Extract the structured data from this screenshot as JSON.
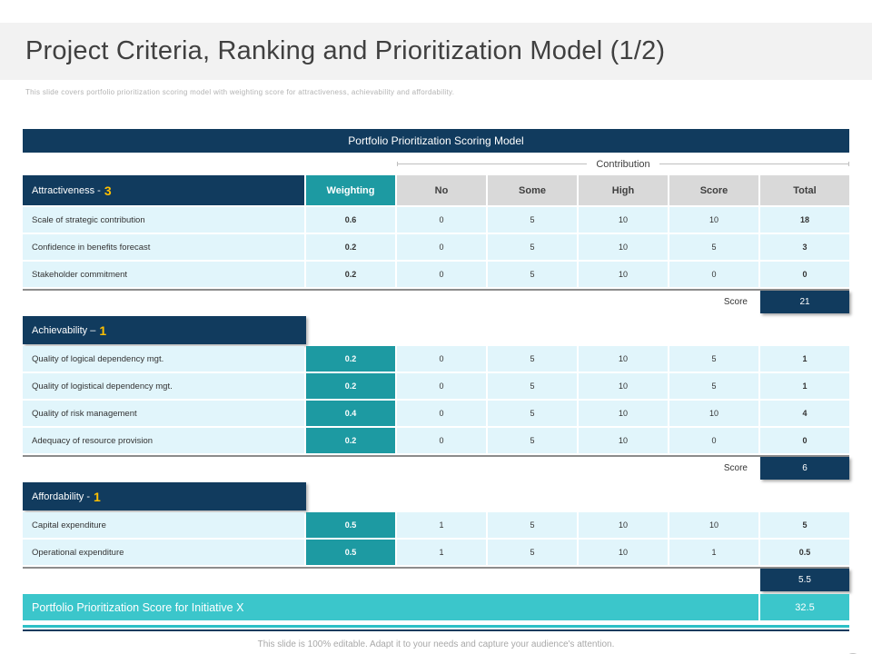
{
  "slide": {
    "title": "Project Criteria, Ranking and Prioritization Model (1/2)",
    "subtitle": "This slide covers portfolio prioritization scoring model with weighting score for attractiveness, achievability and affordability.",
    "footer": "This slide is 100% editable. Adapt it to your needs and capture your audience's attention.",
    "page_number": "8"
  },
  "colors": {
    "navy": "#113b5e",
    "teal": "#1d9aa2",
    "light_teal": "#3bc6cb",
    "row_background": "#e1f5fb",
    "header_gray": "#d9d9d9",
    "accent_yellow": "#ffc000"
  },
  "table": {
    "title": "Portfolio Prioritization Scoring Model",
    "contribution_label": "Contribution",
    "headers": {
      "weighting": "Weighting",
      "no": "No",
      "some": "Some",
      "high": "High",
      "score": "Score",
      "total": "Total"
    },
    "score_label": "Score",
    "sections": [
      {
        "name": "Attractiveness - ",
        "number": "3",
        "rows": [
          {
            "label": "Scale of strategic contribution",
            "weighting": "0.6",
            "no": "0",
            "some": "5",
            "high": "10",
            "score": "10",
            "total": "18"
          },
          {
            "label": "Confidence in benefits forecast",
            "weighting": "0.2",
            "no": "0",
            "some": "5",
            "high": "10",
            "score": "5",
            "total": "3"
          },
          {
            "label": "Stakeholder commitment",
            "weighting": "0.2",
            "no": "0",
            "some": "5",
            "high": "10",
            "score": "0",
            "total": "0"
          }
        ],
        "score": "21"
      },
      {
        "name": "Achievability – ",
        "number": "1",
        "rows": [
          {
            "label": "Quality of logical dependency mgt.",
            "weighting": "0.2",
            "no": "0",
            "some": "5",
            "high": "10",
            "score": "5",
            "total": "1"
          },
          {
            "label": "Quality of logistical dependency mgt.",
            "weighting": "0.2",
            "no": "0",
            "some": "5",
            "high": "10",
            "score": "5",
            "total": "1"
          },
          {
            "label": "Quality of risk management",
            "weighting": "0.4",
            "no": "0",
            "some": "5",
            "high": "10",
            "score": "10",
            "total": "4"
          },
          {
            "label": "Adequacy of resource provision",
            "weighting": "0.2",
            "no": "0",
            "some": "5",
            "high": "10",
            "score": "0",
            "total": "0"
          }
        ],
        "score": "6"
      },
      {
        "name": "Affordability - ",
        "number": "1",
        "rows": [
          {
            "label": "Capital expenditure",
            "weighting": "0.5",
            "no": "1",
            "some": "5",
            "high": "10",
            "score": "10",
            "total": "5"
          },
          {
            "label": "Operational expenditure",
            "weighting": "0.5",
            "no": "1",
            "some": "5",
            "high": "10",
            "score": "1",
            "total": "0.5"
          }
        ],
        "total": "5.5"
      }
    ],
    "final_row": {
      "label": "Portfolio Prioritization Score for Initiative X",
      "value": "32.5"
    }
  }
}
